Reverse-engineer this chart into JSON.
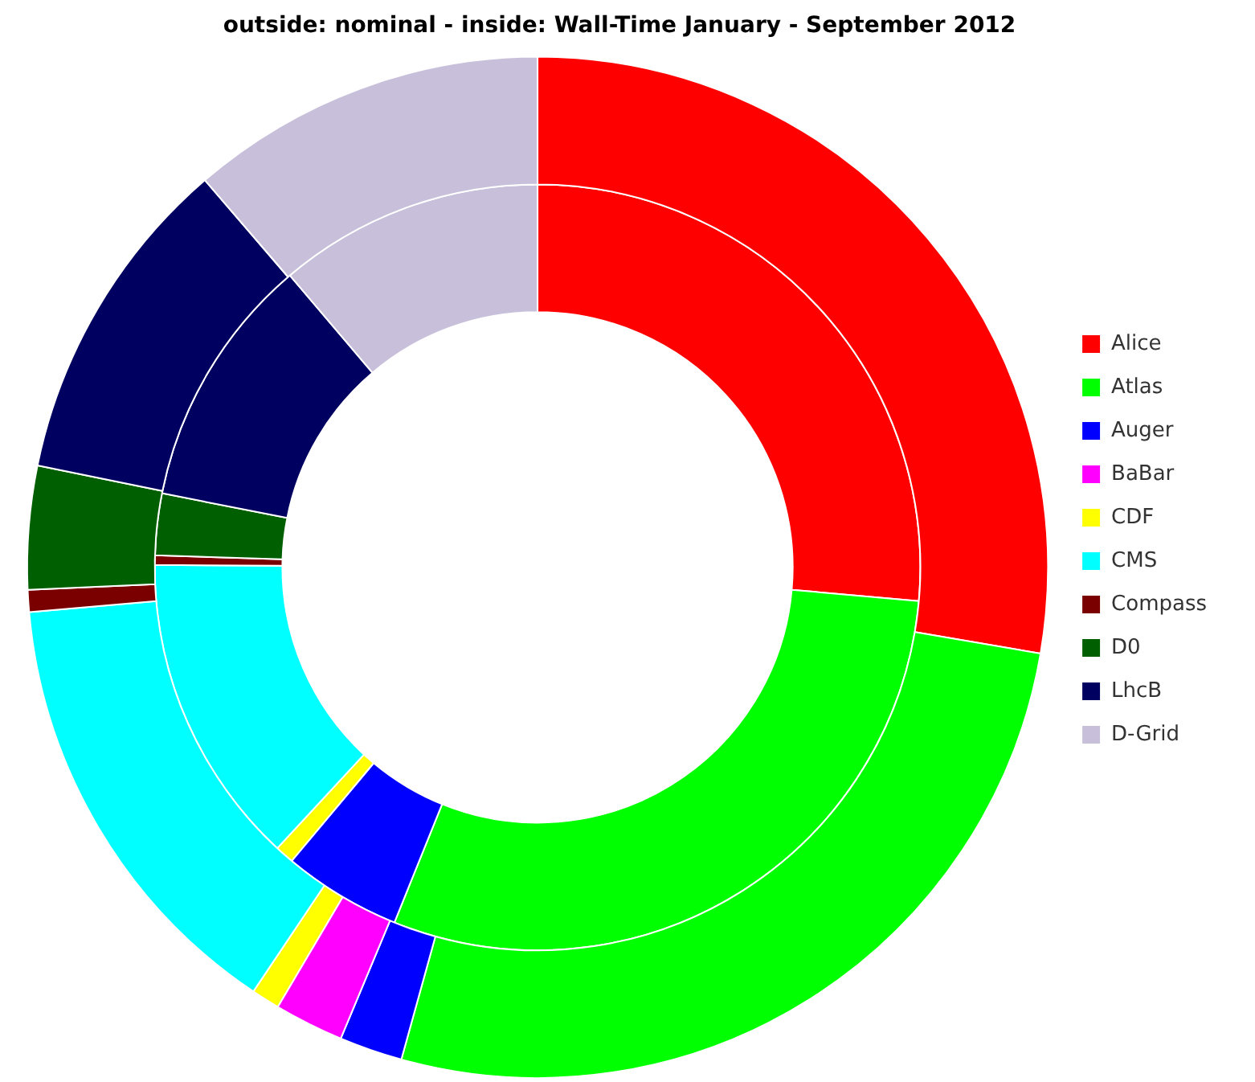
{
  "chart_data": {
    "type": "donut",
    "title": "outside: nominal - inside: Wall-Time January - September 2012",
    "categories": [
      "Alice",
      "Atlas",
      "Auger",
      "BaBar",
      "CDF",
      "CMS",
      "Compass",
      "D0",
      "LhcB",
      "D-Grid"
    ],
    "colors": [
      "#ff0000",
      "#00ff00",
      "#0000ff",
      "#ff00ff",
      "#ffff00",
      "#00ffff",
      "#7a0000",
      "#005f00",
      "#000060",
      "#c8c0da"
    ],
    "series": [
      {
        "values": [
          27.7,
          26.6,
          2,
          2.2,
          0.9,
          14.2,
          0.7,
          3.9,
          10.5,
          11.3
        ]
      },
      {
        "values": [
          26.4,
          29.7,
          5,
          0,
          0.8,
          13.2,
          0.4,
          2.6,
          10.7,
          11.2
        ]
      }
    ],
    "legend": "right"
  }
}
